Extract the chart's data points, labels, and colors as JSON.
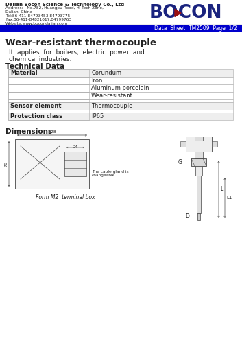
{
  "company_name": "Dalian Bocon Science & Technology Co., Ltd",
  "address_line1": "Address:   No.782, Huangpu Road, Hi-Tech Zone,",
  "address_line2": "Dalian, China",
  "address_line3": "Tel:86-411-84793453,84793775",
  "address_line4": "Fax:86-411-84821017,84799763",
  "address_line5": "Website:www.bocondalian.com",
  "banner_color": "#0000cc",
  "banner_text": "Data  Sheet  TM2509  Page  1/2",
  "banner_text_color": "#ffffff",
  "title": "Wear-resistant thermocouple",
  "description_line1": "It  applies  for  boilers,  electric  power  and",
  "description_line2": "chemical industries.",
  "section_technical": "Technical Data",
  "table_rows": [
    [
      "Material",
      "Corundum",
      true
    ],
    [
      "",
      "Iron",
      false
    ],
    [
      "",
      "Aluminum porcelain",
      false
    ],
    [
      "",
      "Wear-resistant",
      false
    ],
    [
      "Sensor element",
      "Thermocouple",
      true
    ],
    [
      "Protection class",
      "IP65",
      true
    ]
  ],
  "section_dimensions": "Dimensions",
  "form_label": "Form M2  terminal box",
  "bg_color": "#ffffff",
  "text_color": "#222222",
  "logo_color": "#1a237e",
  "logo_triangle_color": "#9b1010",
  "dim_line_color": "#444444"
}
